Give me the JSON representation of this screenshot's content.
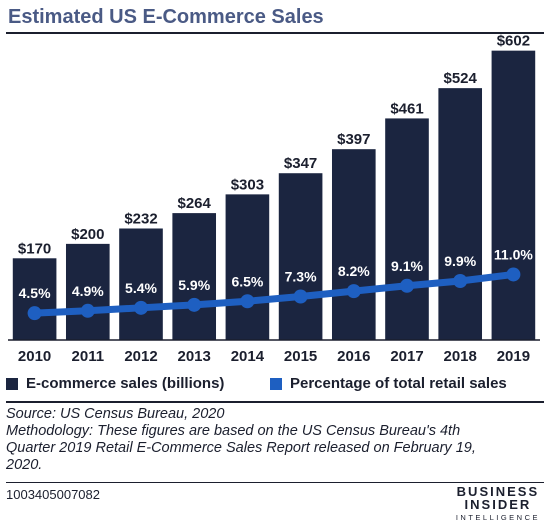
{
  "title": "Estimated US E-Commerce Sales",
  "colors": {
    "bar": "#1b2540",
    "line": "#1e5fc1",
    "title": "#4a5a85",
    "rule": "#1b1f2e"
  },
  "chart_data": {
    "type": "bar",
    "title": "Estimated US E-Commerce Sales",
    "categories": [
      "2010",
      "2011",
      "2012",
      "2013",
      "2014",
      "2015",
      "2016",
      "2017",
      "2018",
      "2019"
    ],
    "series": [
      {
        "name": "E-commerce sales (billions)",
        "type": "bar",
        "values": [
          170,
          200,
          232,
          264,
          303,
          347,
          397,
          461,
          524,
          602
        ],
        "labels": [
          "$170",
          "$200",
          "$232",
          "$264",
          "$303",
          "$347",
          "$397",
          "$461",
          "$524",
          "$602"
        ]
      },
      {
        "name": "Percentage of total retail sales",
        "type": "line",
        "values": [
          4.5,
          4.9,
          5.4,
          5.9,
          6.5,
          7.3,
          8.2,
          9.1,
          9.9,
          11.0
        ],
        "labels": [
          "4.5%",
          "4.9%",
          "5.4%",
          "5.9%",
          "6.5%",
          "7.3%",
          "8.2%",
          "9.1%",
          "9.9%",
          "11.0%"
        ]
      }
    ],
    "ylim_bars": [
      0,
      620
    ],
    "ylim_line": [
      0,
      50
    ],
    "grid": false,
    "legend": "bottom"
  },
  "legend": {
    "bars": "E-commerce sales (billions)",
    "line": "Percentage of total retail sales"
  },
  "notes": {
    "source": "Source: US Census Bureau, 2020",
    "methodology": [
      "Methodology: These figures are based on the US Census Bureau's 4th",
      "Quarter 2019 Retail E-Commerce Sales Report released on February 19,",
      "2020."
    ]
  },
  "footer": {
    "chart_id": "1003405007082",
    "logo_line1": "BUSINESS",
    "logo_line2": "INSIDER",
    "logo_line3": "INTELLIGENCE"
  }
}
